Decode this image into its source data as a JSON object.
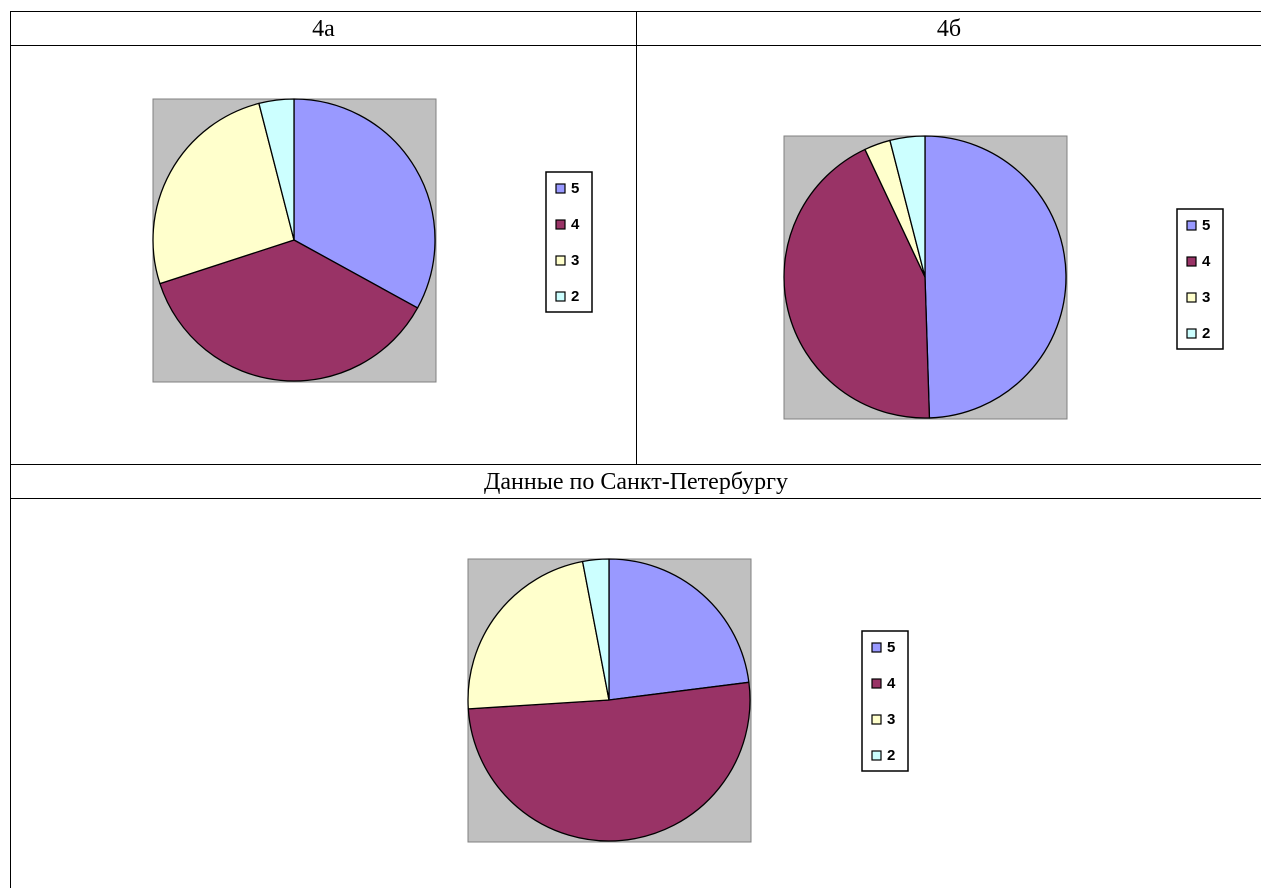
{
  "headers": {
    "top_left": "4а",
    "top_right": "4б",
    "middle": "Данные по Санкт-Петербургу"
  },
  "colors": {
    "plot_bg": "#c0c0c0",
    "slice_5": "#9999ff",
    "slice_4": "#993366",
    "slice_3": "#ffffcc",
    "slice_2": "#ccffff",
    "outline": "#000000"
  },
  "chart_data": [
    {
      "id": "4a",
      "type": "pie",
      "title": "4а",
      "legend_position": "right",
      "categories": [
        "5",
        "4",
        "3",
        "2"
      ],
      "values": [
        33,
        37,
        26,
        4
      ]
    },
    {
      "id": "4b",
      "type": "pie",
      "title": "4б",
      "legend_position": "right",
      "categories": [
        "5",
        "4",
        "3",
        "2"
      ],
      "values": [
        49.5,
        43.5,
        3,
        4
      ]
    },
    {
      "id": "spb",
      "type": "pie",
      "title": "Данные по Санкт-Петербургу",
      "legend_position": "right",
      "categories": [
        "5",
        "4",
        "3",
        "2"
      ],
      "values": [
        23,
        51,
        23,
        3
      ]
    }
  ]
}
